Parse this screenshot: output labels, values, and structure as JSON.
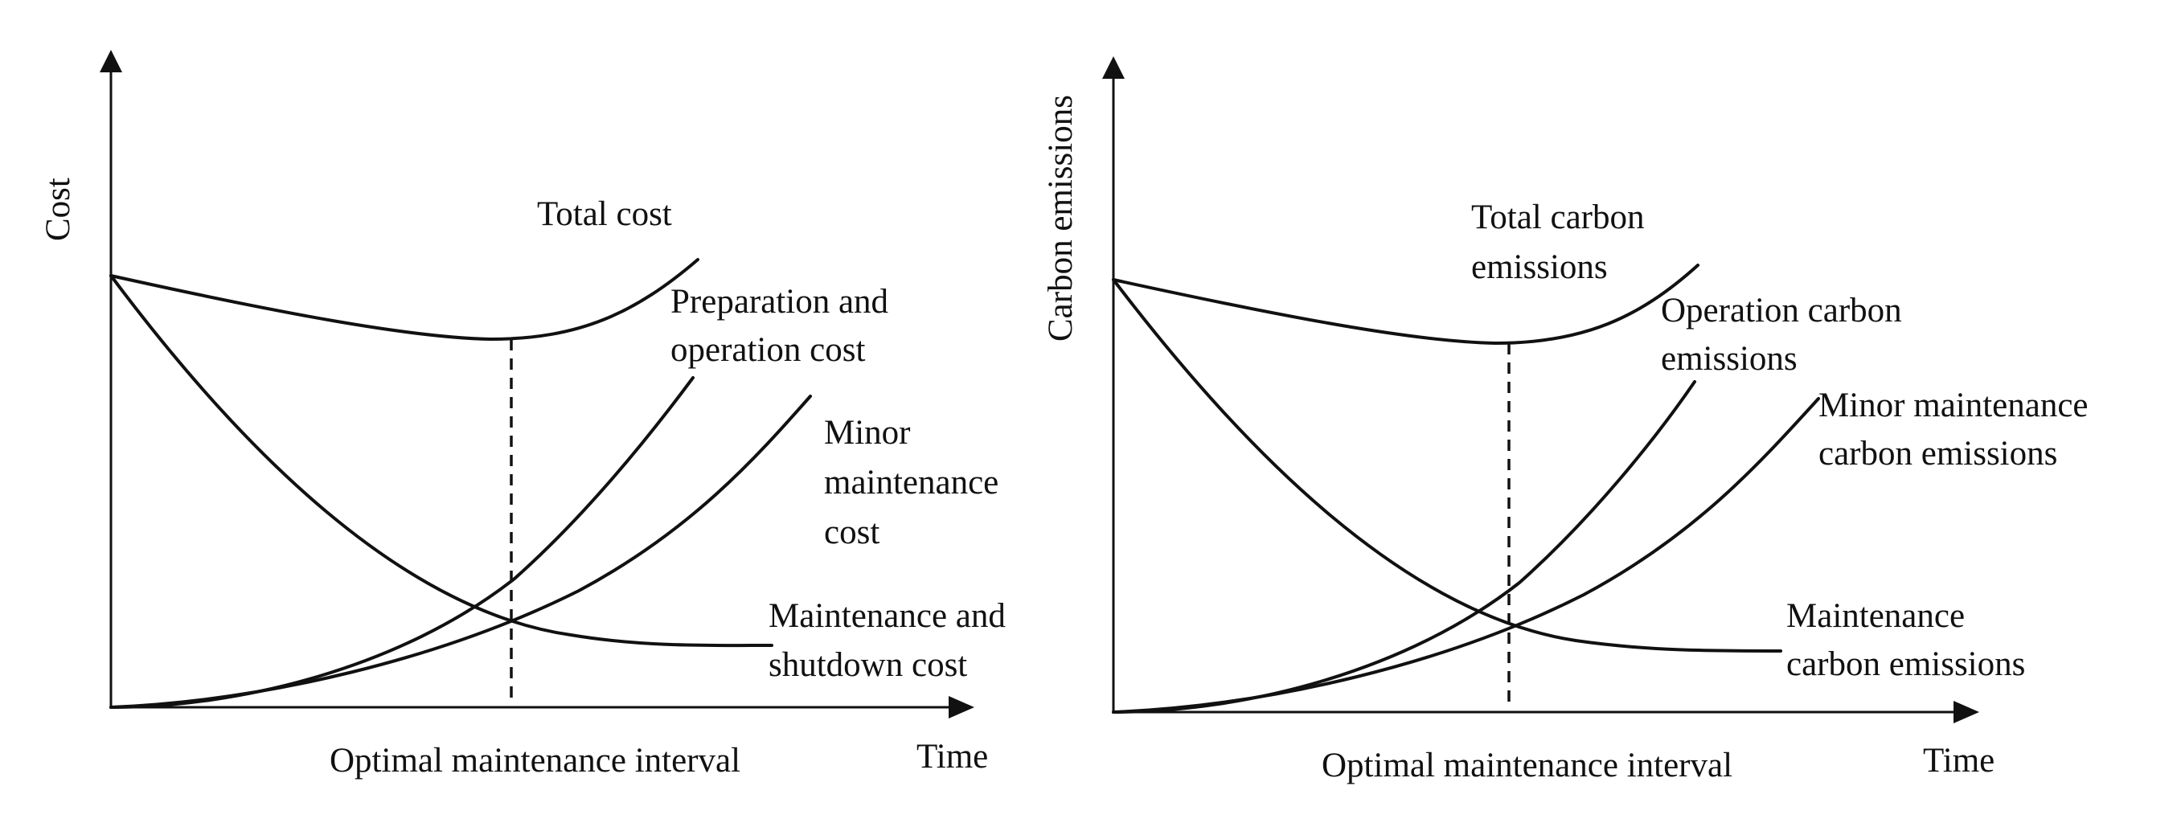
{
  "left_diagram": {
    "y_axis_label": "Cost",
    "x_axis_label": "Time",
    "optimal_label": "Optimal maintenance interval",
    "curves": {
      "total": [
        "Total cost"
      ],
      "preparation": [
        "Preparation  and",
        "operation cost"
      ],
      "minor": [
        "Minor",
        "maintenance",
        "cost"
      ],
      "maintenance": [
        "Maintenance and",
        "shutdown cost"
      ]
    }
  },
  "right_diagram": {
    "y_axis_label": "Carbon emissions",
    "x_axis_label": "Time",
    "optimal_label": "Optimal maintenance interval",
    "curves": {
      "total": [
        "Total carbon",
        "emissions"
      ],
      "preparation": [
        "Operation carbon",
        "emissions"
      ],
      "minor": [
        "Minor maintenance",
        "carbon emissions"
      ],
      "maintenance": [
        "Maintenance",
        "carbon emissions"
      ]
    }
  },
  "colors": {
    "line": "#111111",
    "background": "#ffffff"
  }
}
